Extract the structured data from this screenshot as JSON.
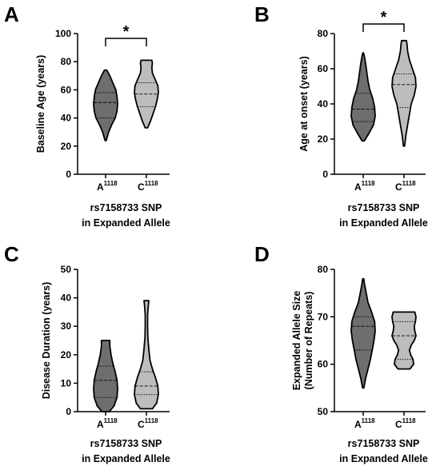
{
  "colors": {
    "group_a": "#6e6e6e",
    "group_c": "#bdbdbd",
    "stroke": "#000000"
  },
  "chart_data": [
    {
      "panel": "A",
      "type": "violin",
      "ylabel": "Baseline Age (years)",
      "xlabel_line1": "rs7158733 SNP",
      "xlabel_line2": "in Expanded Allele",
      "ylim": [
        0,
        100
      ],
      "yticks": [
        0,
        20,
        40,
        60,
        80,
        100
      ],
      "significance": "*",
      "groups": [
        {
          "label": "A",
          "superscript": "1118",
          "min": 24,
          "max": 74,
          "q1": 40,
          "median": 51,
          "q3": 58,
          "profile": [
            [
              24,
              0.05
            ],
            [
              30,
              0.25
            ],
            [
              35,
              0.5
            ],
            [
              40,
              0.8
            ],
            [
              45,
              0.95
            ],
            [
              50,
              1.0
            ],
            [
              55,
              0.95
            ],
            [
              60,
              0.85
            ],
            [
              65,
              0.6
            ],
            [
              70,
              0.35
            ],
            [
              74,
              0.1
            ]
          ]
        },
        {
          "label": "C",
          "superscript": "1118",
          "min": 33,
          "max": 81,
          "q1": 48,
          "median": 57,
          "q3": 65,
          "profile": [
            [
              33,
              0.1
            ],
            [
              38,
              0.35
            ],
            [
              43,
              0.55
            ],
            [
              48,
              0.75
            ],
            [
              53,
              0.9
            ],
            [
              58,
              1.0
            ],
            [
              63,
              0.95
            ],
            [
              68,
              0.7
            ],
            [
              72,
              0.5
            ],
            [
              76,
              0.45
            ],
            [
              79,
              0.5
            ],
            [
              81,
              0.45
            ]
          ]
        }
      ]
    },
    {
      "panel": "B",
      "type": "violin",
      "ylabel": "Age at onset (years)",
      "xlabel_line1": "rs7158733 SNP",
      "xlabel_line2": "in Expanded Allele",
      "ylim": [
        0,
        80
      ],
      "yticks": [
        0,
        20,
        40,
        60,
        80
      ],
      "significance": "*",
      "groups": [
        {
          "label": "A",
          "superscript": "1118",
          "min": 19,
          "max": 69,
          "q1": 30,
          "median": 37,
          "q3": 46,
          "profile": [
            [
              19,
              0.1
            ],
            [
              23,
              0.45
            ],
            [
              28,
              0.85
            ],
            [
              33,
              1.0
            ],
            [
              38,
              0.95
            ],
            [
              43,
              0.8
            ],
            [
              48,
              0.55
            ],
            [
              53,
              0.4
            ],
            [
              58,
              0.3
            ],
            [
              63,
              0.2
            ],
            [
              67,
              0.1
            ],
            [
              69,
              0.03
            ]
          ]
        },
        {
          "label": "C",
          "superscript": "1118",
          "min": 16,
          "max": 76,
          "q1": 38,
          "median": 51,
          "q3": 57,
          "profile": [
            [
              16,
              0.05
            ],
            [
              22,
              0.15
            ],
            [
              28,
              0.3
            ],
            [
              34,
              0.45
            ],
            [
              40,
              0.6
            ],
            [
              45,
              0.85
            ],
            [
              50,
              1.0
            ],
            [
              55,
              0.95
            ],
            [
              60,
              0.7
            ],
            [
              65,
              0.45
            ],
            [
              70,
              0.3
            ],
            [
              74,
              0.25
            ],
            [
              76,
              0.2
            ]
          ]
        }
      ]
    },
    {
      "panel": "C",
      "type": "violin",
      "ylabel": "Disease Duration (years)",
      "xlabel_line1": "rs7158733 SNP",
      "xlabel_line2": "in Expanded Allele",
      "ylim": [
        0,
        50
      ],
      "yticks": [
        0,
        10,
        20,
        30,
        40,
        50
      ],
      "significance": "",
      "groups": [
        {
          "label": "A",
          "superscript": "1118",
          "min": 0,
          "max": 25,
          "q1": 5,
          "median": 11,
          "q3": 16,
          "profile": [
            [
              0,
              0.3
            ],
            [
              2,
              0.7
            ],
            [
              5,
              0.95
            ],
            [
              8,
              1.0
            ],
            [
              11,
              0.95
            ],
            [
              14,
              0.8
            ],
            [
              17,
              0.6
            ],
            [
              20,
              0.45
            ],
            [
              23,
              0.35
            ],
            [
              25,
              0.35
            ]
          ]
        },
        {
          "label": "C",
          "superscript": "1118",
          "min": 1,
          "max": 39,
          "q1": 6,
          "median": 9,
          "q3": 14,
          "profile": [
            [
              1,
              0.5
            ],
            [
              3,
              0.85
            ],
            [
              6,
              1.0
            ],
            [
              9,
              0.95
            ],
            [
              12,
              0.75
            ],
            [
              15,
              0.5
            ],
            [
              18,
              0.3
            ],
            [
              22,
              0.2
            ],
            [
              26,
              0.12
            ],
            [
              30,
              0.1
            ],
            [
              34,
              0.1
            ],
            [
              37,
              0.15
            ],
            [
              39,
              0.2
            ]
          ]
        }
      ]
    },
    {
      "panel": "D",
      "type": "violin",
      "ylabel_line1": "Expanded Allele Size",
      "ylabel_line2": "(Number of Repeats)",
      "xlabel_line1": "rs7158733 SNP",
      "xlabel_line2": "in Expanded Allele",
      "ylim": [
        50,
        80
      ],
      "yticks": [
        50,
        60,
        70,
        80
      ],
      "significance": "",
      "groups": [
        {
          "label": "A",
          "superscript": "1118",
          "min": 55,
          "max": 78,
          "q1": 63,
          "median": 68,
          "q3": 70,
          "profile": [
            [
              55,
              0.05
            ],
            [
              57,
              0.2
            ],
            [
              59,
              0.4
            ],
            [
              61,
              0.6
            ],
            [
              63,
              0.75
            ],
            [
              65,
              0.9
            ],
            [
              67,
              1.0
            ],
            [
              69,
              0.95
            ],
            [
              71,
              0.7
            ],
            [
              73,
              0.4
            ],
            [
              75,
              0.25
            ],
            [
              77,
              0.1
            ],
            [
              78,
              0.05
            ]
          ]
        },
        {
          "label": "C",
          "superscript": "1118",
          "min": 59,
          "max": 71,
          "q1": 61,
          "median": 66,
          "q3": 69,
          "profile": [
            [
              59,
              0.5
            ],
            [
              60,
              0.8
            ],
            [
              61,
              0.75
            ],
            [
              62,
              0.55
            ],
            [
              63,
              0.45
            ],
            [
              64,
              0.6
            ],
            [
              65,
              0.85
            ],
            [
              66,
              1.0
            ],
            [
              67,
              0.9
            ],
            [
              68,
              0.85
            ],
            [
              69,
              0.95
            ],
            [
              70,
              1.0
            ],
            [
              71,
              0.9
            ]
          ]
        }
      ]
    }
  ]
}
